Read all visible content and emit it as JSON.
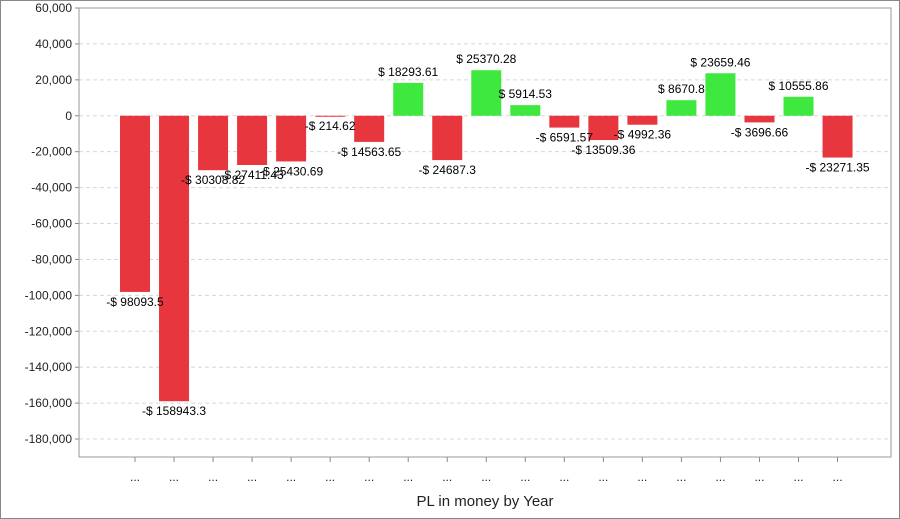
{
  "chart_data": {
    "type": "bar",
    "title": "",
    "xlabel": "PL in money by Year",
    "ylabel": "",
    "ylim": [
      -190000,
      60000
    ],
    "yticks": [
      60000,
      40000,
      20000,
      0,
      -20000,
      -40000,
      -60000,
      -80000,
      -100000,
      -120000,
      -140000,
      -160000,
      -180000
    ],
    "ytick_labels": [
      "60,000",
      "40,000",
      "20,000",
      "0",
      "-20,000",
      "-40,000",
      "-60,000",
      "-80,000",
      "-100,000",
      "-120,000",
      "-140,000",
      "-160,000",
      "-180,000"
    ],
    "grid": true,
    "legend": "none",
    "colors": {
      "positive": "#3ee83e",
      "negative": "#e8363e",
      "grid": "#d8d8d8",
      "axis": "#888888"
    },
    "categories": [
      "...",
      "...",
      "...",
      "...",
      "...",
      "...",
      "...",
      "...",
      "...",
      "...",
      "...",
      "...",
      "...",
      "...",
      "...",
      "...",
      "...",
      "...",
      "..."
    ],
    "values": [
      -98093.5,
      -158943.3,
      -30308.82,
      -27411.43,
      -25430.69,
      -214.62,
      -14563.65,
      18293.61,
      -24687.3,
      25370.28,
      5914.53,
      -6591.57,
      -13509.36,
      -4992.36,
      8670.8,
      23659.46,
      -3696.66,
      10555.86,
      -23271.35
    ],
    "data_labels": [
      "-$ 98093.5",
      "-$ 158943.3",
      "-$ 30308.82",
      "-$ 27411.43",
      "-$ 25430.69",
      "-$ 214.62",
      "-$ 14563.65",
      "$ 18293.61",
      "-$ 24687.3",
      "$ 25370.28",
      "$ 5914.53",
      "-$ 6591.57",
      "-$ 13509.36",
      "-$ 4992.36",
      "$ 8670.8",
      "$ 23659.46",
      "-$ 3696.66",
      "$ 10555.86",
      "-$ 23271.35"
    ]
  }
}
